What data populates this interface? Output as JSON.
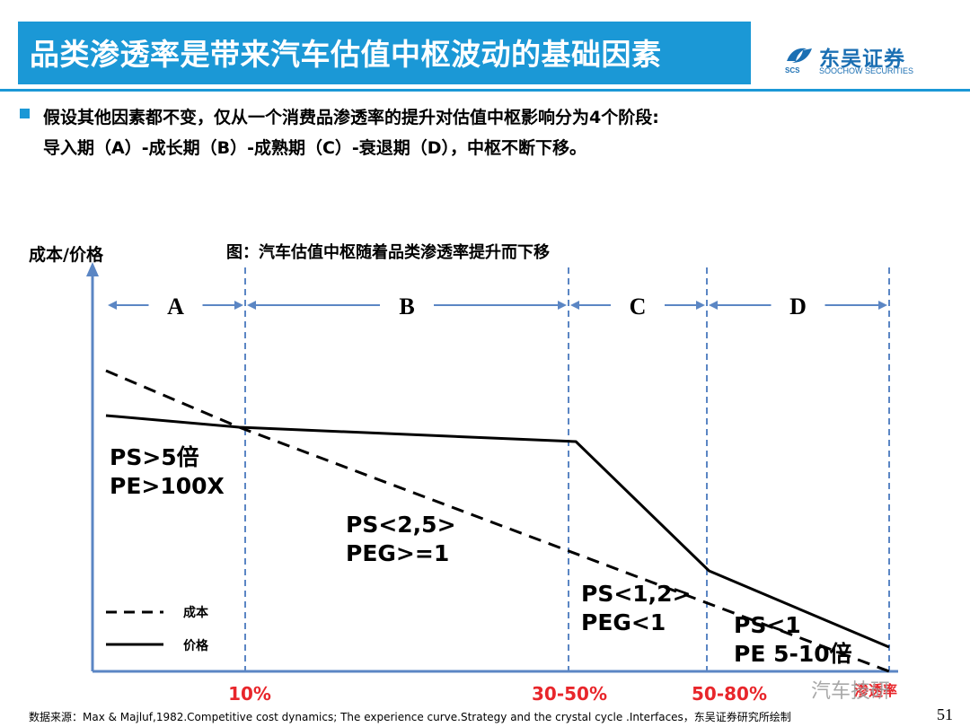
{
  "header": {
    "title": "品类渗透率是带来汽车估值中枢波动的基础因素",
    "logo_cn": "东吴证券",
    "logo_en": "SOOCHOW SECURITIES",
    "logo_abbr": "SCS"
  },
  "bullet": {
    "line1": "假设其他因素都不变，仅从一个消费品渗透率的提升对估值中枢影响分为4个阶段:",
    "line2": "导入期（A）-成长期（B）-成熟期（C）-衰退期（D），中枢不断下移。"
  },
  "chart_data": {
    "type": "line",
    "title": "图：汽车估值中枢随着品类渗透率提升而下移",
    "ylabel": "成本/价格",
    "xlabel": "渗透率",
    "stages": [
      {
        "name": "A",
        "text": [
          "PS>5倍",
          "PE>100X"
        ]
      },
      {
        "name": "B",
        "text": [
          "PS<2,5>",
          "PEG>=1"
        ]
      },
      {
        "name": "C",
        "text": [
          "PS<1,2>",
          "PEG<1"
        ]
      },
      {
        "name": "D",
        "text": [
          "PS<1",
          "PE 5-10倍"
        ]
      }
    ],
    "boundaries": [
      "10%",
      "30-50%",
      "50-80%"
    ],
    "series": [
      {
        "name": "成本",
        "style": "dashed",
        "points": [
          [
            0,
            335
          ],
          [
            0.17,
            272
          ],
          [
            1.0,
            0
          ]
        ]
      },
      {
        "name": "价格",
        "style": "solid",
        "points": [
          [
            0,
            285
          ],
          [
            0.17,
            272
          ],
          [
            0.6,
            256
          ],
          [
            0.77,
            112
          ],
          [
            1.0,
            27
          ]
        ]
      }
    ],
    "colors": {
      "accent": "#1b98d6",
      "axis": "#5b86c4",
      "boundary_label": "#e8262b"
    }
  },
  "footer": {
    "source": "数据来源：Max & Majluf,1982.Competitive cost dynamics; The experience curve.Strategy and the crystal cycle .Interfaces，东吴证券研究所绘制",
    "page": "51",
    "watermark": "汽车技研"
  }
}
